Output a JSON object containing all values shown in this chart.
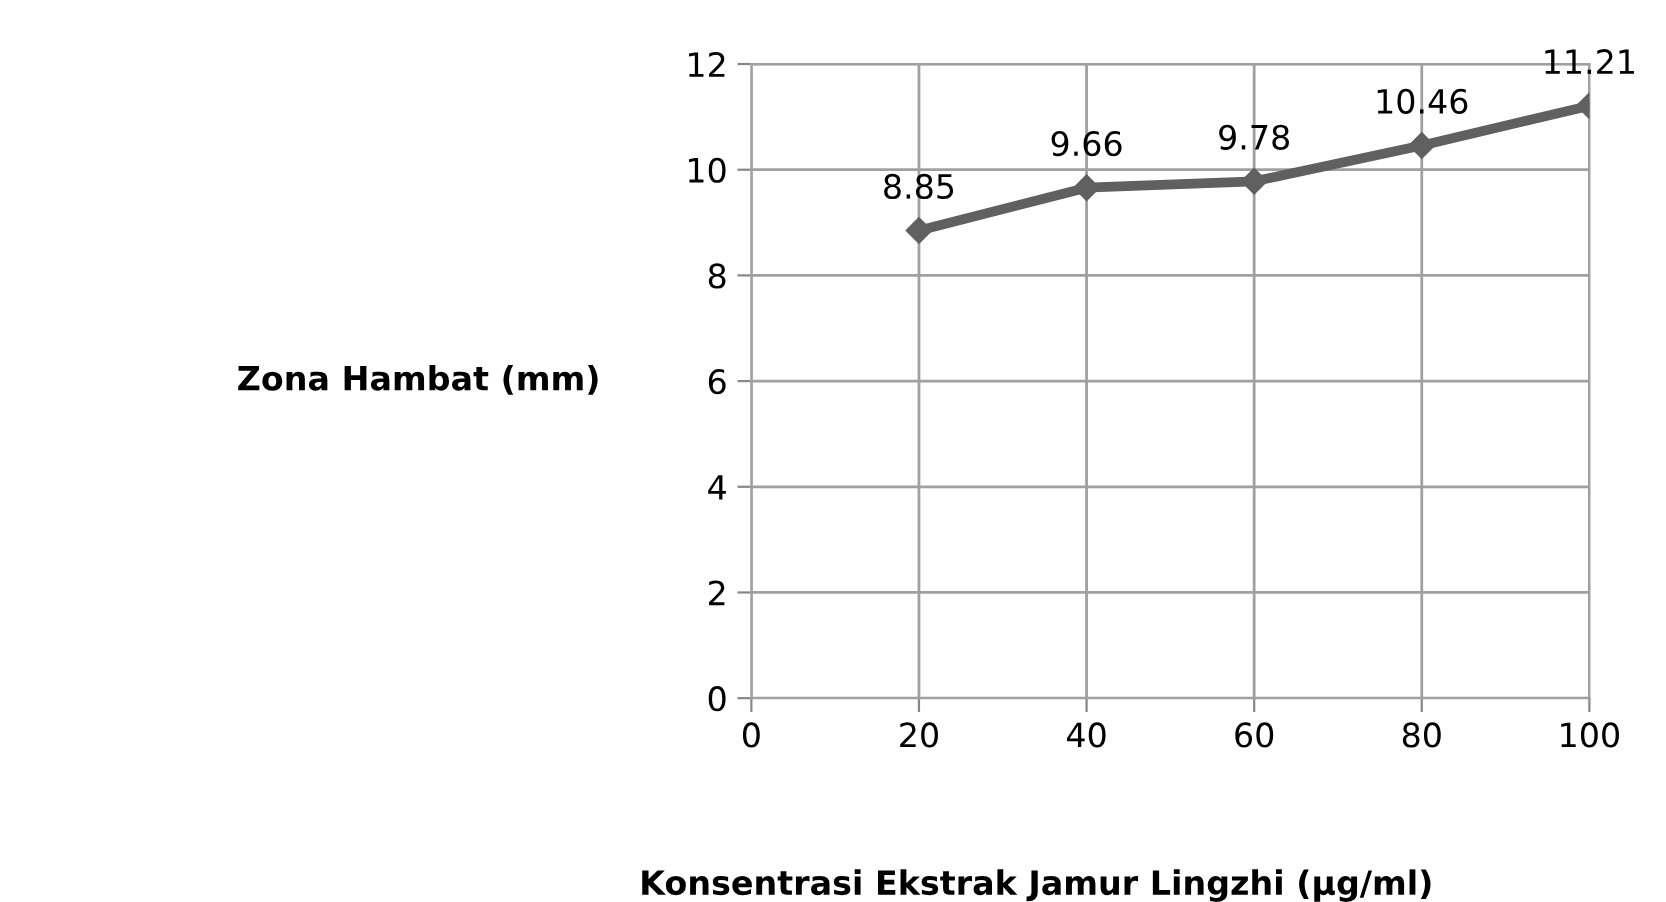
{
  "chart_data": {
    "type": "line",
    "xlabel": "Konsentrasi Ekstrak Jamur Lingzhi (µg/ml)",
    "ylabel": "Zona Hambat (mm)",
    "x": [
      20,
      40,
      60,
      80,
      100
    ],
    "series": [
      {
        "color": "#606060",
        "values": [
          8.85,
          9.66,
          9.78,
          10.46,
          11.21
        ]
      }
    ],
    "xlim": [
      0,
      100
    ],
    "xticks": [
      0,
      20,
      40,
      60,
      80,
      100
    ],
    "ylim": [
      0,
      12
    ],
    "yticks": [
      0,
      2,
      4,
      6,
      8,
      10,
      12
    ],
    "grid": true,
    "marker": "diamond",
    "line_style": "solid",
    "data_labels": true,
    "legend": false
  }
}
